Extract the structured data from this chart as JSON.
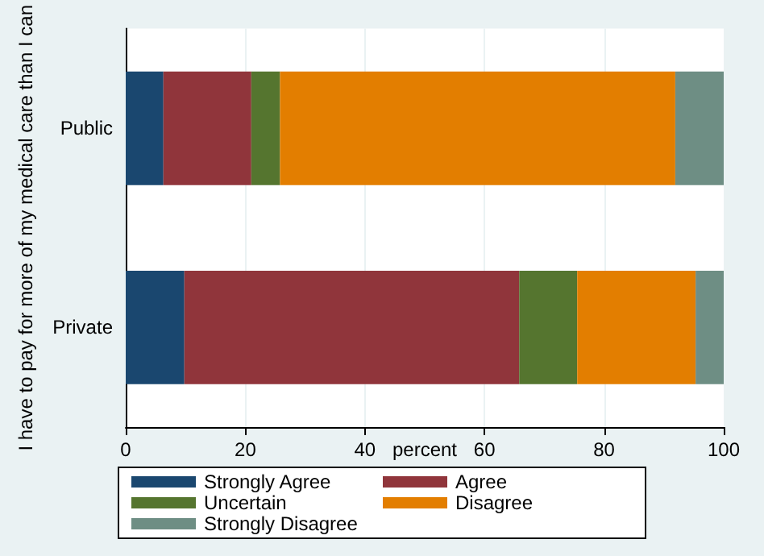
{
  "chart_data": {
    "type": "bar",
    "orientation": "horizontal",
    "stacked": true,
    "categories": [
      "Public",
      "Private"
    ],
    "series": [
      {
        "name": "Strongly Agree",
        "color": "#1a476f",
        "values": [
          6.3,
          9.8
        ]
      },
      {
        "name": "Agree",
        "color": "#90353b",
        "values": [
          14.7,
          56.0
        ]
      },
      {
        "name": "Uncertain",
        "color": "#55752f",
        "values": [
          4.8,
          9.7
        ]
      },
      {
        "name": "Disagree",
        "color": "#e37e00",
        "values": [
          66.1,
          19.8
        ]
      },
      {
        "name": "Strongly Disagree",
        "color": "#6e8e84",
        "values": [
          8.1,
          4.7
        ]
      }
    ],
    "xlim": [
      0,
      100
    ],
    "xticks": [
      0,
      20,
      40,
      60,
      80,
      100
    ],
    "xlabel": "percent",
    "ylabel": "I have to pay for more of my medical care than I can",
    "grid": "x",
    "legend": "bottom"
  }
}
